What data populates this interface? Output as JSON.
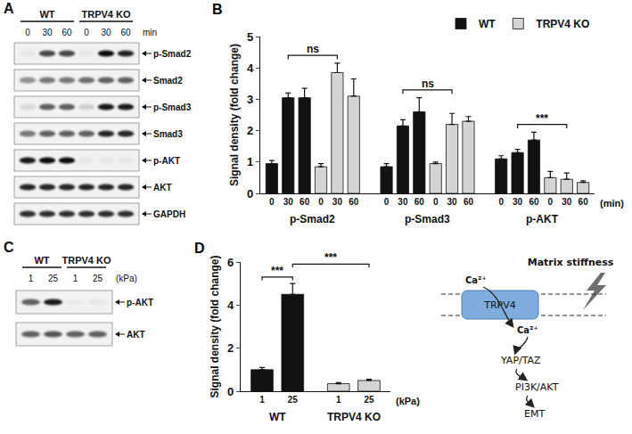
{
  "chart_data": [
    {
      "panel_label": "B",
      "type": "bar",
      "y_label": "Signal density (fold change)",
      "x_label": "(min)",
      "categories": [
        "0",
        "30",
        "60",
        "0",
        "30",
        "60",
        "0",
        "30",
        "60",
        "0",
        "30",
        "60",
        "0",
        "30",
        "60",
        "0",
        "30",
        "60"
      ],
      "groups": [
        "p-Smad2",
        "p-Smad3",
        "p-AKT"
      ],
      "series": [
        {
          "name": "WT",
          "color": "#111111",
          "values": [
            0.95,
            3.05,
            3.05,
            null,
            null,
            null,
            0.85,
            2.15,
            2.6,
            null,
            null,
            null,
            1.1,
            1.3,
            1.7,
            null,
            null,
            null
          ],
          "errors": [
            0.1,
            0.15,
            0.3,
            null,
            null,
            null,
            0.1,
            0.2,
            0.45,
            null,
            null,
            null,
            0.1,
            0.1,
            0.25,
            null,
            null,
            null
          ]
        },
        {
          "name": "TRPV4 KO",
          "color": "#d4d4d4",
          "values": [
            null,
            null,
            null,
            0.85,
            3.85,
            3.1,
            null,
            null,
            null,
            0.95,
            2.2,
            2.3,
            null,
            null,
            null,
            0.5,
            0.45,
            0.35
          ],
          "errors": [
            null,
            null,
            null,
            0.1,
            0.3,
            0.55,
            null,
            null,
            null,
            0.05,
            0.35,
            0.15,
            null,
            null,
            null,
            0.2,
            0.2,
            0.05
          ]
        }
      ],
      "ylim": [
        0,
        5
      ],
      "yticks": [
        0,
        1,
        2,
        3,
        4,
        5
      ],
      "legend": "top right",
      "comparisons": [
        {
          "from": 1,
          "to": 4,
          "label": "ns"
        },
        {
          "from": 7,
          "to": 10,
          "label": "ns"
        },
        {
          "from": 13,
          "to": 16,
          "label": "***"
        }
      ]
    },
    {
      "panel_label": "D",
      "type": "bar",
      "y_label": "Signal density (fold change)",
      "x_label": "(kPa)",
      "categories": [
        "1",
        "25",
        "1",
        "25"
      ],
      "groups": [
        "WT",
        "TRPV4 KO"
      ],
      "values": [
        1.0,
        4.5,
        0.35,
        0.5
      ],
      "errors": [
        0.1,
        0.5,
        0.05,
        0.05
      ],
      "colors": [
        "#111111",
        "#111111",
        "#d4d4d4",
        "#d4d4d4"
      ],
      "ylim": [
        0,
        6
      ],
      "yticks": [
        0,
        2,
        4,
        6
      ],
      "comparisons": [
        {
          "from": 0,
          "to": 1,
          "label": "***"
        },
        {
          "from": 1,
          "to": 3,
          "label": "***"
        }
      ]
    }
  ],
  "blots": [
    {
      "panel_label": "A",
      "unit": "min",
      "groups": [
        {
          "label": "WT",
          "lanes": 3
        },
        {
          "label": "TRPV4 KO",
          "lanes": 3
        }
      ],
      "lane_labels": [
        "0",
        "30",
        "60",
        "0",
        "30",
        "60"
      ],
      "rows": [
        {
          "label": "p-Smad2",
          "bands": [
            0.05,
            0.7,
            0.7,
            0.05,
            0.95,
            0.85
          ]
        },
        {
          "label": "Smad2",
          "bands": [
            0.4,
            0.5,
            0.5,
            0.55,
            0.6,
            0.6
          ]
        },
        {
          "label": "p-Smad3",
          "bands": [
            0.1,
            0.6,
            0.6,
            0.15,
            0.9,
            0.9
          ]
        },
        {
          "label": "Smad3",
          "bands": [
            0.5,
            0.6,
            0.6,
            0.6,
            0.85,
            0.85
          ]
        },
        {
          "label": "p-AKT",
          "bands": [
            0.9,
            0.95,
            0.95,
            0.05,
            0.05,
            0.05
          ]
        },
        {
          "label": "AKT",
          "bands": [
            0.85,
            0.85,
            0.85,
            0.85,
            0.85,
            0.85
          ]
        },
        {
          "label": "GAPDH",
          "bands": [
            0.8,
            0.8,
            0.8,
            0.8,
            0.8,
            0.8
          ]
        }
      ]
    },
    {
      "panel_label": "C",
      "unit": "(kPa)",
      "groups": [
        {
          "label": "WT",
          "lanes": 2
        },
        {
          "label": "TRPV4 KO",
          "lanes": 2
        }
      ],
      "lane_labels": [
        "1",
        "25",
        "1",
        "25"
      ],
      "rows": [
        {
          "label": "p-AKT",
          "bands": [
            0.6,
            0.9,
            0.03,
            0.05
          ]
        },
        {
          "label": "AKT",
          "bands": [
            0.6,
            0.65,
            0.6,
            0.6
          ]
        }
      ]
    }
  ],
  "diagram": {
    "title": "Matrix stiffness",
    "channel": "TRPV4",
    "ion_outside": "Ca²⁺",
    "ion_inside": "Ca²⁺",
    "steps": [
      "YAP/TAZ",
      "PI3K/AKT",
      "EMT"
    ]
  }
}
